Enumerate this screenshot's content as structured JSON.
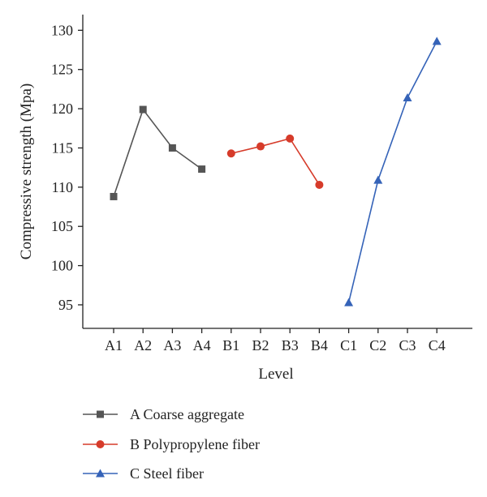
{
  "chart_data": {
    "type": "line",
    "xlabel": "Level",
    "ylabel": "Compressive strength (Mpa)",
    "ylim": [
      92,
      132
    ],
    "yticks": [
      95,
      100,
      105,
      110,
      115,
      120,
      125,
      130
    ],
    "categories": [
      "A1",
      "A2",
      "A3",
      "A4",
      "B1",
      "B2",
      "B3",
      "B4",
      "C1",
      "C2",
      "C3",
      "C4"
    ],
    "grid": false,
    "legend_position": "bottom",
    "series": [
      {
        "name": "A Coarse aggregate",
        "color": "#555555",
        "marker": "square",
        "x": [
          "A1",
          "A2",
          "A3",
          "A4"
        ],
        "values": [
          108.8,
          119.9,
          115.0,
          112.3
        ]
      },
      {
        "name": "B Polypropylene fiber",
        "color": "#d63b2a",
        "marker": "circle",
        "x": [
          "B1",
          "B2",
          "B3",
          "B4"
        ],
        "values": [
          114.3,
          115.2,
          116.2,
          110.3
        ]
      },
      {
        "name": "C Steel fiber",
        "color": "#3563b8",
        "marker": "triangle",
        "x": [
          "C1",
          "C2",
          "C3",
          "C4"
        ],
        "values": [
          95.3,
          110.9,
          121.4,
          128.6
        ]
      }
    ]
  }
}
